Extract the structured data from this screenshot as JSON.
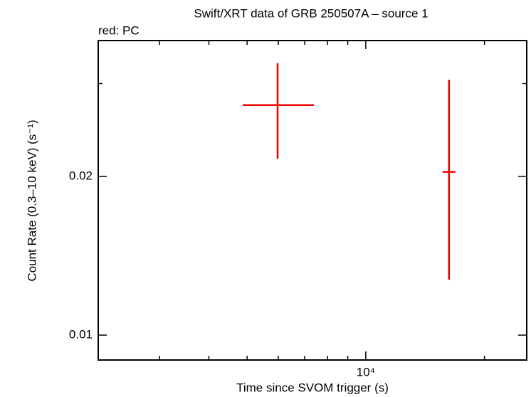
{
  "chart_data": {
    "type": "errorbar",
    "title": "Swift/XRT data of GRB 250507A – source 1",
    "subtitle": "red: PC",
    "x_label": "Time since SVOM trigger (s)",
    "y_label": "Count Rate (0.3–10 keV) (s⁻¹)",
    "log_x": true,
    "log_y": true,
    "xlim": [
      2096,
      25600
    ],
    "ylim": [
      0.00897,
      0.0362
    ],
    "xticks": [
      {
        "value": 10000,
        "label": "10⁴"
      }
    ],
    "xminorticks": [
      3000,
      4000,
      5000,
      6000,
      7000,
      8000,
      9000,
      20000
    ],
    "yticks": [
      0.01,
      0.02
    ],
    "yminorticks": [
      0.03
    ],
    "series": [
      {
        "name": "PC",
        "color": "#ee0000",
        "x": [
          5975,
          16260
        ],
        "x_low": [
          4875,
          15660
        ],
        "x_high": [
          7385,
          16870
        ],
        "values": [
          0.0273,
          0.0204
        ],
        "y_low": [
          0.0216,
          0.01274
        ],
        "y_high": [
          0.0328,
          0.0305
        ]
      }
    ]
  }
}
